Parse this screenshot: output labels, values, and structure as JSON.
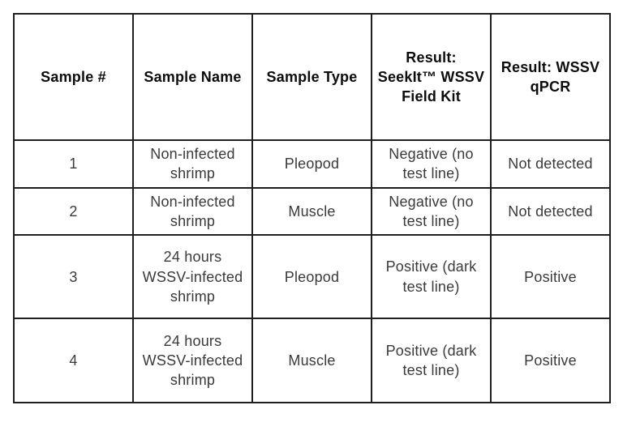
{
  "page": {
    "background_color": "#ffffff"
  },
  "table": {
    "description": "WSSV shrimp sample test results table",
    "border_color": "#1f1f1f",
    "header_text_color": "#0d0d0d",
    "body_text_color": "#3a3a3a",
    "header": [
      "Sample #",
      "Sample Name",
      "Sample Type",
      "Result:\nSeekIt™ WSSV\nField Kit",
      "Result: WSSV\nqPCR"
    ],
    "rows": [
      [
        "1",
        "Non-infected\nshrimp",
        "Pleopod",
        "Negative (no\ntest line)",
        "Not detected"
      ],
      [
        "2",
        "Non-infected\nshrimp",
        "Muscle",
        "Negative (no\ntest line)",
        "Not detected"
      ],
      [
        "3",
        "24 hours\nWSSV-infected\nshrimp",
        "Pleopod",
        "Positive (dark\ntest line)",
        "Positive"
      ],
      [
        "4",
        "24 hours\nWSSV-infected\nshrimp",
        "Muscle",
        "Positive (dark\ntest line)",
        "Positive"
      ]
    ]
  }
}
